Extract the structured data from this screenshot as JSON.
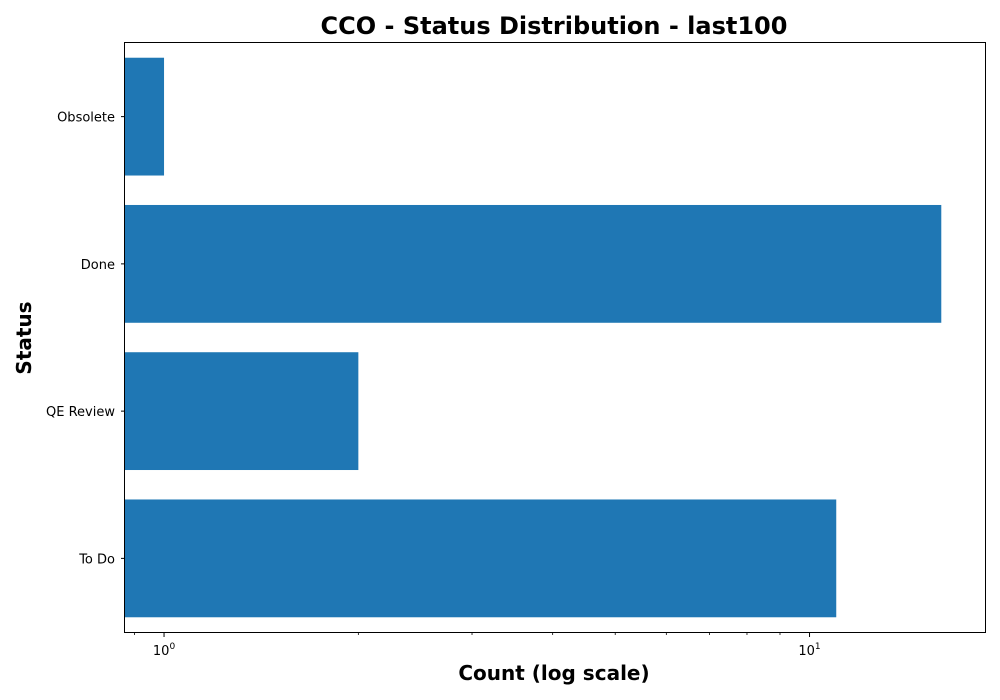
{
  "chart_data": {
    "type": "bar",
    "orientation": "horizontal",
    "title": "CCO - Status Distribution - last100",
    "xlabel": "Count (log scale)",
    "ylabel": "Status",
    "xscale": "log",
    "xlim": [
      0.87,
      18.7
    ],
    "x_ticks": [
      {
        "value": 1,
        "base": "10",
        "exp": "0"
      },
      {
        "value": 10,
        "base": "10",
        "exp": "1"
      }
    ],
    "categories": [
      "Obsolete",
      "Done",
      "QE Review",
      "To Do"
    ],
    "values": [
      1,
      16,
      2,
      11
    ],
    "bar_color": "#1f77b4",
    "grid": false,
    "legend": false
  }
}
